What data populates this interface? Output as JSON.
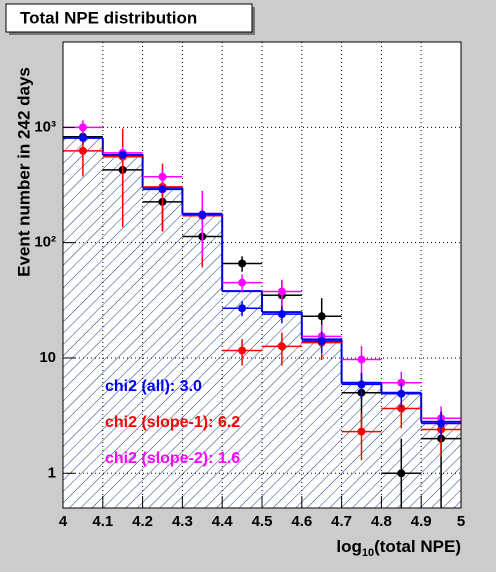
{
  "chart_data": {
    "type": "histogram",
    "title": "Total NPE distribution",
    "ylabel": "Event number in 242 days",
    "xlabel": {
      "prefix": "log",
      "sub": "10",
      "rest": "(total NPE)"
    },
    "bins": [
      4,
      4.1,
      4.2,
      4.3,
      4.4,
      4.5,
      4.6,
      4.7,
      4.8,
      4.9,
      5
    ],
    "counts": [
      810,
      578,
      300,
      178,
      38,
      25,
      14.5,
      6.1,
      5,
      2.8
    ],
    "color": "#0000ff",
    "series": [
      {
        "color": "#000000",
        "values": [
          830,
          428,
          226,
          113,
          66,
          35,
          23,
          5,
          1,
          2
        ],
        "errors": [
          120,
          210,
          100,
          45,
          10,
          12,
          10,
          2.5,
          1,
          1.5
        ]
      },
      {
        "color": "#ff0000",
        "values": [
          626,
          556,
          305,
          171,
          11.6,
          12.6,
          13.6,
          2.3,
          3.65,
          2.4
        ],
        "errors": [
          250,
          420,
          180,
          110,
          3,
          4,
          4,
          1,
          1.2,
          1
        ]
      },
      {
        "color": "#ff00ff",
        "values": [
          1000,
          601,
          373,
          175,
          45,
          37.7,
          15.4,
          9.7,
          6.1,
          3
        ],
        "errors": [
          150,
          80,
          60,
          100,
          8,
          10,
          4,
          3,
          1.5,
          0.8
        ]
      },
      {
        "color": "#0000ff",
        "values": [
          810,
          578,
          290,
          175,
          27,
          24,
          14,
          5.9,
          4.9,
          2.7
        ],
        "errors": [
          40,
          30,
          20,
          15,
          4,
          4,
          3,
          1.5,
          1.2,
          0.7
        ]
      }
    ],
    "annotations": [
      {
        "text": "chi2 (all): 3.0",
        "color": "#0000ff"
      },
      {
        "text": "chi2 (slope-1): 6.2",
        "color": "#ff0000"
      },
      {
        "text": "chi2 (slope-2): 1.6",
        "color": "#ff00ff"
      }
    ],
    "xlim": [
      4,
      5
    ],
    "xticks": [
      4,
      4.1,
      4.2,
      4.3,
      4.4,
      4.5,
      4.6,
      4.7,
      4.8,
      4.9,
      5
    ],
    "ylim": [
      0.5,
      5500
    ],
    "yticks": [
      1,
      10,
      {
        "value": 100,
        "label": "10²"
      },
      {
        "value": 1000,
        "label": "10³"
      }
    ],
    "log_y": true,
    "grid": true
  }
}
